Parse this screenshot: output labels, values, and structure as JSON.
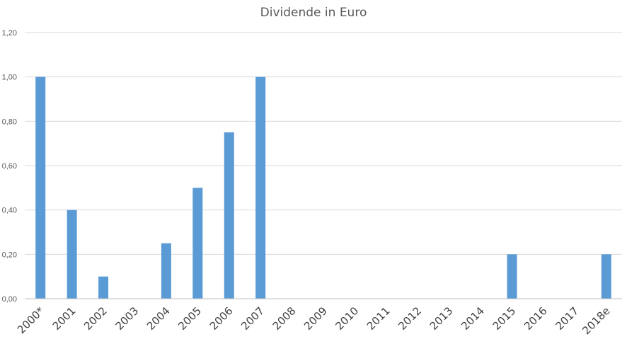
{
  "chart_data": {
    "type": "bar",
    "title": "Dividende in Euro",
    "categories": [
      "2000*",
      "2001",
      "2002",
      "2003",
      "2004",
      "2005",
      "2006",
      "2007",
      "2008",
      "2009",
      "2010",
      "2011",
      "2012",
      "2013",
      "2014",
      "2015",
      "2016",
      "2017",
      "2018e"
    ],
    "series": [
      {
        "values": [
          1.0,
          0.4,
          0.1,
          0,
          0.25,
          0.5,
          0.75,
          1.0,
          0,
          0,
          0,
          0,
          0,
          0,
          0,
          0.2,
          0,
          0,
          0.2
        ]
      }
    ],
    "ylim": [
      0,
      1.2
    ],
    "yticks": [
      "0,00",
      "0,20",
      "0,40",
      "0,60",
      "0,80",
      "1,00",
      "1,20"
    ],
    "grid": true,
    "legend": "none",
    "bar_color": "#5b9bd5"
  }
}
